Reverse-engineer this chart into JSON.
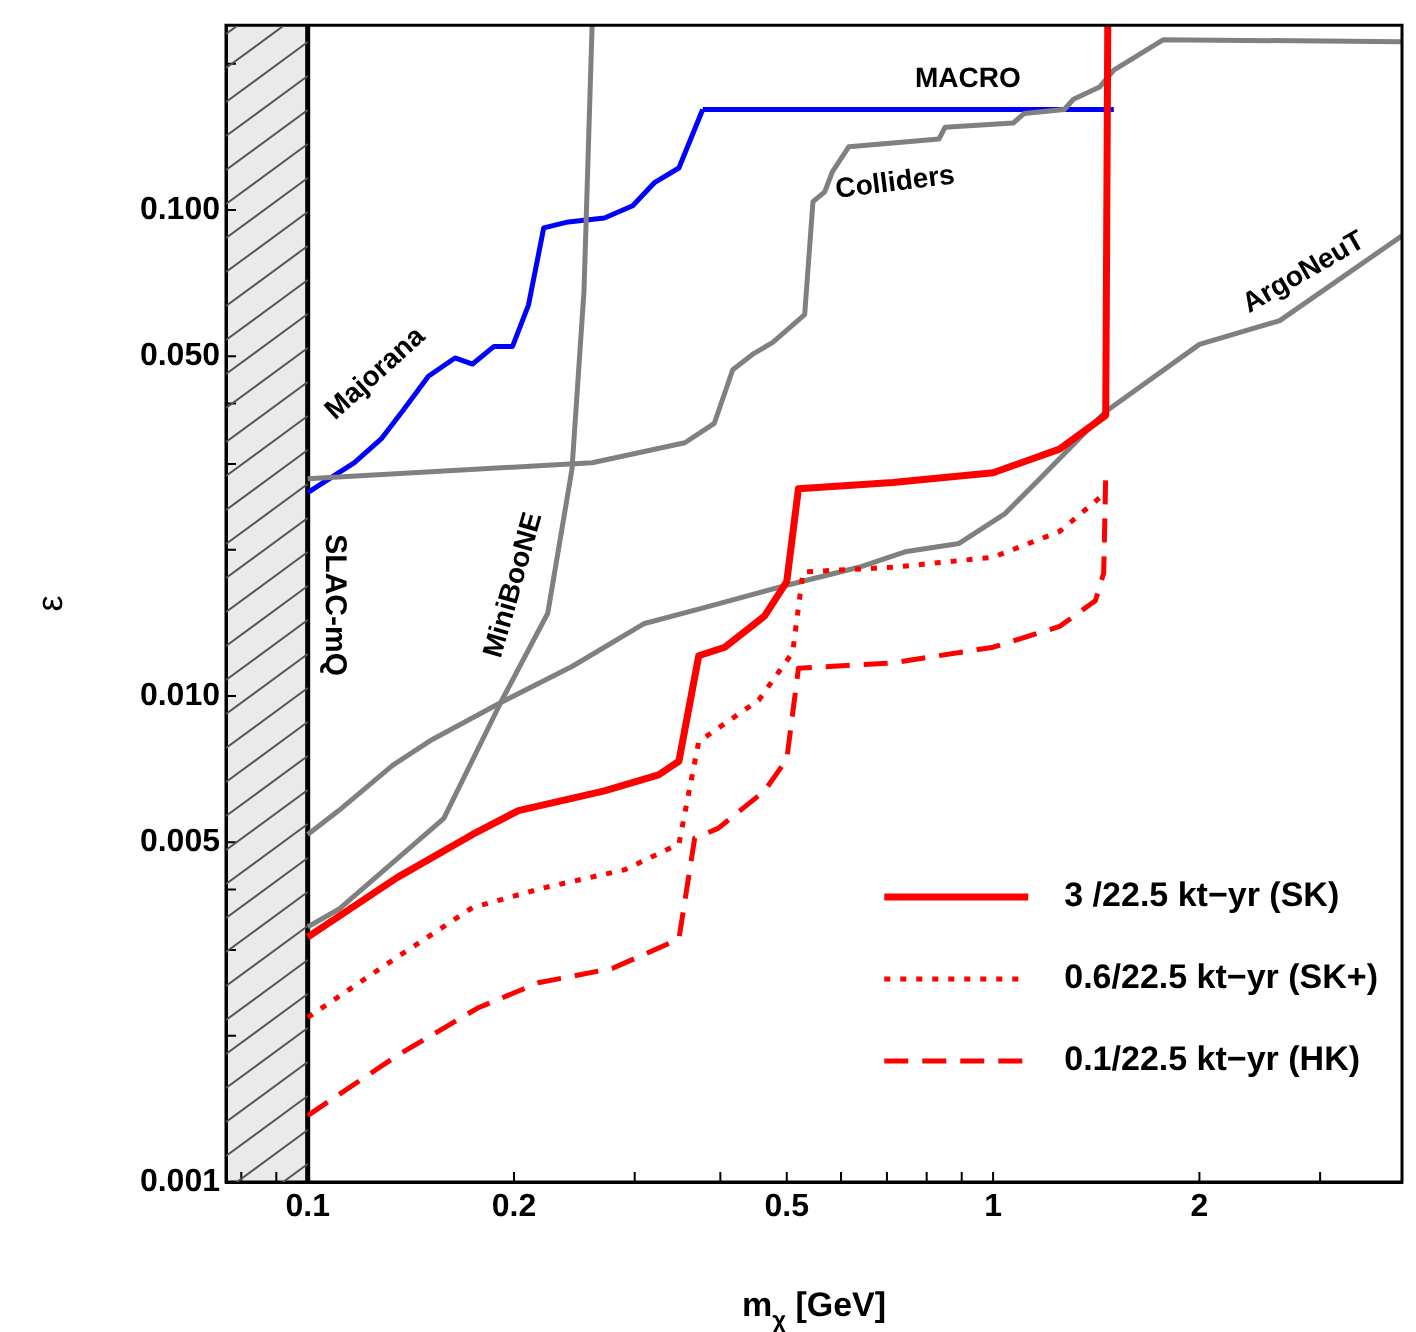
{
  "chart_data": {
    "type": "line",
    "xlabel": "m$_{χ}$ [GeV]",
    "ylabel": "ε",
    "log": "xy",
    "grid": false,
    "legend": "bottom right",
    "marker": "none",
    "xlim": [
      0.076,
      3.95
    ],
    "ylim": [
      0.001,
      0.24
    ],
    "xticks": [
      {
        "value": 0.08,
        "label": null
      },
      {
        "value": 0.09,
        "label": null
      },
      0.1,
      0.2,
      {
        "value": 0.3,
        "label": null
      },
      {
        "value": 0.4,
        "label": null
      },
      0.5,
      {
        "value": 0.6,
        "label": null
      },
      {
        "value": 0.7,
        "label": null
      },
      {
        "value": 0.8,
        "label": null
      },
      {
        "value": 0.9,
        "label": null
      },
      1,
      2,
      {
        "value": 3,
        "label": null
      }
    ],
    "yticks": [
      0.001,
      {
        "value": 0.002,
        "label": null
      },
      {
        "value": 0.003,
        "label": null
      },
      {
        "value": 0.004,
        "label": null
      },
      0.005,
      {
        "value": 0.01,
        "label": "0.010"
      },
      {
        "value": 0.02,
        "label": null
      },
      {
        "value": 0.03,
        "label": null
      },
      {
        "value": 0.04,
        "label": null
      },
      {
        "value": 0.05,
        "label": "0.050"
      },
      {
        "value": 0.1,
        "label": "0.100"
      },
      {
        "value": 0.2,
        "label": null
      }
    ],
    "bands": [
      {
        "axis": "x",
        "from": 0.076,
        "to": 0.1,
        "color": "#555555"
      }
    ],
    "ref_lines": [
      {
        "axis": "x",
        "value": 0.1,
        "label": "SLAC-mQ",
        "color": "#000000",
        "line_style": "solid"
      }
    ],
    "series": [
      {
        "name": "Majorana",
        "color": "#0000ff",
        "line_style": "solid",
        "x": [
          0.1,
          0.117,
          0.128,
          0.138,
          0.15,
          0.164,
          0.174,
          0.187,
          0.199,
          0.21,
          0.221,
          0.24,
          0.271,
          0.298,
          0.321,
          0.348,
          0.377
        ],
        "values": [
          0.0262,
          0.0302,
          0.0338,
          0.0388,
          0.0455,
          0.0496,
          0.0482,
          0.0524,
          0.0524,
          0.0638,
          0.0919,
          0.0945,
          0.0963,
          0.102,
          0.114,
          0.122,
          0.161
        ]
      },
      {
        "name": "MACRO",
        "color": "#0000ff",
        "line_style": "solid",
        "x": [
          0.377,
          1.5
        ],
        "values": [
          0.161,
          0.161
        ]
      },
      {
        "name": "Colliders",
        "color": "#808080",
        "line_style": "solid",
        "x": [
          0.1,
          0.26,
          0.355,
          0.392,
          0.417,
          0.446,
          0.477,
          0.531,
          0.546,
          0.568,
          0.583,
          0.616,
          0.834,
          0.851,
          1.07,
          1.11,
          1.27,
          1.31,
          1.43,
          1.5,
          1.77,
          3.95
        ],
        "values": [
          0.028,
          0.0302,
          0.0332,
          0.0364,
          0.0469,
          0.0505,
          0.0534,
          0.0609,
          0.104,
          0.109,
          0.12,
          0.135,
          0.14,
          0.148,
          0.151,
          0.158,
          0.161,
          0.169,
          0.179,
          0.194,
          0.224,
          0.222
        ]
      },
      {
        "name": "MiniBooNE",
        "color": "#808080",
        "line_style": "solid",
        "x": [
          0.1,
          0.111,
          0.158,
          0.192,
          0.224,
          0.243,
          0.253,
          0.26
        ],
        "values": [
          0.00335,
          0.00364,
          0.0056,
          0.0098,
          0.0148,
          0.0293,
          0.0681,
          0.24
        ]
      },
      {
        "name": "ArgoNeuT",
        "color": "#808080",
        "line_style": "solid",
        "x": [
          0.1,
          0.111,
          0.133,
          0.152,
          0.192,
          0.243,
          0.31,
          0.379,
          0.5,
          0.637,
          0.744,
          0.892,
          1.04,
          1.17,
          1.46,
          2.0,
          2.62,
          3.95
        ],
        "values": [
          0.00519,
          0.00581,
          0.0072,
          0.00814,
          0.00972,
          0.0115,
          0.0141,
          0.0152,
          0.0169,
          0.0184,
          0.0198,
          0.0206,
          0.0237,
          0.028,
          0.0385,
          0.0529,
          0.0592,
          0.0885
        ]
      },
      {
        "name": "3 /22.5 kt−yr (SK)",
        "color": "#ff0000",
        "line_style": "solid",
        "x": [
          0.1,
          0.135,
          0.174,
          0.203,
          0.271,
          0.325,
          0.348,
          0.372,
          0.406,
          0.464,
          0.5,
          0.52,
          0.714,
          1.0,
          1.25,
          1.46,
          1.47
        ],
        "values": [
          0.00319,
          0.00423,
          0.00519,
          0.00581,
          0.00638,
          0.00688,
          0.00734,
          0.0121,
          0.0126,
          0.0146,
          0.0172,
          0.0267,
          0.0275,
          0.0288,
          0.0322,
          0.0378,
          0.24
        ]
      },
      {
        "name": "0.6/22.5 kt−yr (SK+)",
        "color": "#ff0000",
        "line_style": "dotted",
        "x": [
          0.1,
          0.135,
          0.174,
          0.221,
          0.29,
          0.348,
          0.372,
          0.455,
          0.51,
          0.528,
          0.714,
          1.0,
          1.25,
          1.45
        ],
        "values": [
          0.00218,
          0.0029,
          0.00367,
          0.00403,
          0.00439,
          0.00496,
          0.00806,
          0.0098,
          0.0123,
          0.018,
          0.0184,
          0.0193,
          0.0218,
          0.026
        ]
      },
      {
        "name": "0.1/22.5 kt−yr (HK)",
        "color": "#ff0000",
        "line_style": "dashed",
        "x": [
          0.1,
          0.135,
          0.177,
          0.217,
          0.278,
          0.348,
          0.367,
          0.397,
          0.464,
          0.5,
          0.52,
          0.714,
          1.0,
          1.25,
          1.41,
          1.45,
          1.46
        ],
        "values": [
          0.00137,
          0.00182,
          0.00228,
          0.00257,
          0.00275,
          0.00316,
          0.0051,
          0.00534,
          0.00638,
          0.00741,
          0.0114,
          0.0117,
          0.0126,
          0.0139,
          0.0157,
          0.0179,
          0.0285
        ]
      }
    ]
  }
}
